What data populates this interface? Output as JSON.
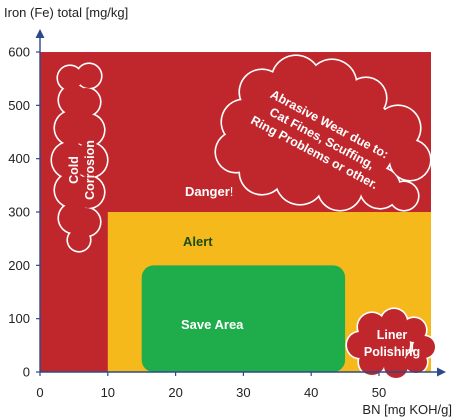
{
  "chart_data": {
    "type": "area",
    "title": "",
    "xlabel": "BN [mg KOH/g]",
    "ylabel": "Iron (Fe) total [mg/kg]",
    "xlim": [
      0,
      57
    ],
    "ylim": [
      0,
      600
    ],
    "x_ticks": [
      0,
      10,
      20,
      30,
      40,
      50
    ],
    "y_ticks": [
      0,
      100,
      200,
      300,
      400,
      500,
      600
    ],
    "zones": [
      {
        "name": "Danger",
        "label": "Danger",
        "label_suffix": "!",
        "color": "#c0272d",
        "x": [
          0,
          58
        ],
        "y": [
          0,
          600
        ]
      },
      {
        "name": "Alert",
        "label": "Alert",
        "color": "#f5b91c",
        "x": [
          10,
          58
        ],
        "y": [
          0,
          300
        ]
      },
      {
        "name": "Save Area",
        "label": "Save Area",
        "color": "#1fad4b",
        "x": [
          15,
          45
        ],
        "y": [
          0,
          200
        ]
      }
    ],
    "annotations": [
      {
        "name": "cold-corrosion",
        "lines": [
          "Cold",
          "Corrosion"
        ],
        "color": "#c0272d"
      },
      {
        "name": "abrasive-wear",
        "lines": [
          "Abrasive Wear due to:",
          "Cat Fines, Scuffing,",
          "Ring Problems or other."
        ],
        "color": "#c0272d"
      },
      {
        "name": "liner-polishing",
        "lines": [
          "Liner",
          "Polishing"
        ],
        "color": "#c0272d"
      }
    ],
    "grid": false,
    "legend": "none"
  },
  "colors": {
    "danger": "#c0272d",
    "alert": "#f5b91c",
    "save": "#1fad4b",
    "axis": "#2b4a8b"
  }
}
